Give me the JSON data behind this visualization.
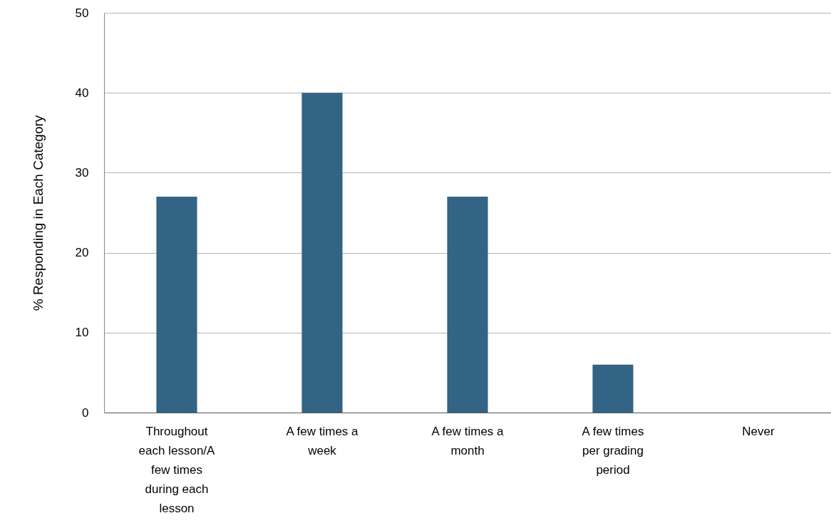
{
  "chart_data": {
    "type": "bar",
    "ylabel": "% Responding in Each Category",
    "categories": [
      "Throughout each lesson/A few times during each lesson",
      "A few times a week",
      "A few times a month",
      "A few times per grading period",
      "Never"
    ],
    "values": [
      27,
      40,
      27,
      6,
      0
    ],
    "color": "#336385",
    "ylim": [
      0,
      50
    ],
    "yticks": [
      0,
      10,
      20,
      30,
      40,
      50
    ],
    "grid": "y"
  }
}
